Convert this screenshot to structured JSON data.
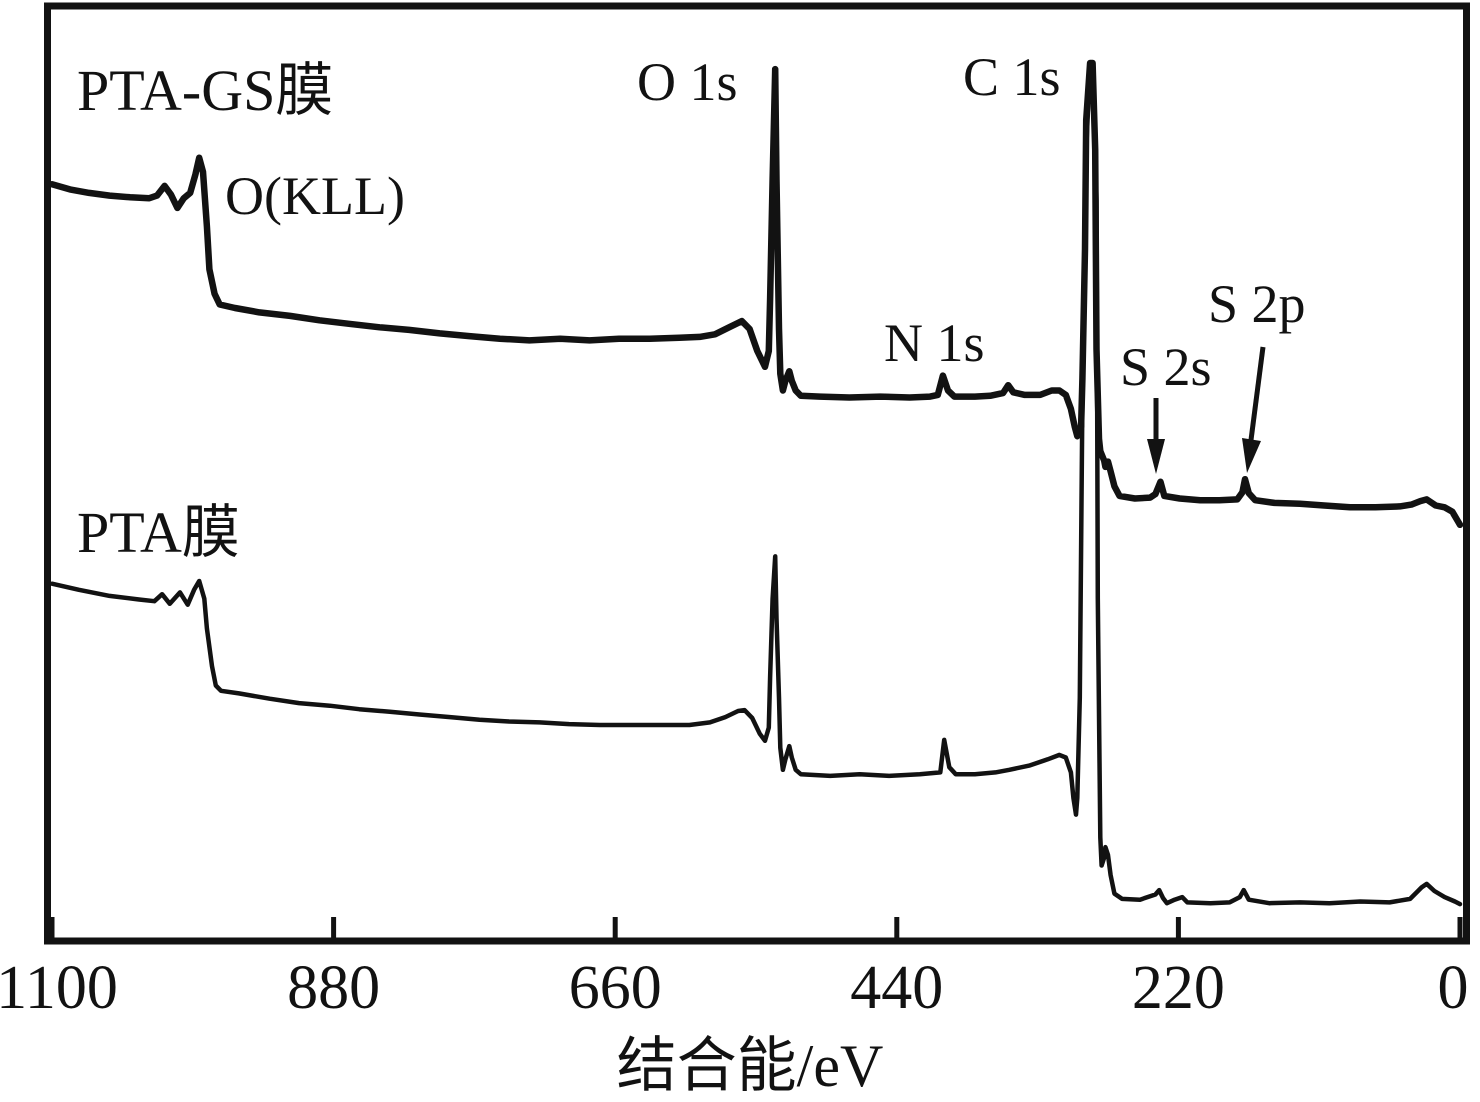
{
  "page": {
    "background": "#ffffff",
    "ink": "#121212"
  },
  "plot": {
    "curve_labels": [
      {
        "id": "pta_gs",
        "text": "PTA-GS膜"
      },
      {
        "id": "pta",
        "text": "PTA膜"
      }
    ],
    "peak_labels": {
      "o_kll": "O(KLL)",
      "o1s": "O 1s",
      "c1s": "C 1s",
      "n1s": "N 1s",
      "s2s": "S 2s",
      "s2p": "S 2p"
    },
    "x_axis_title": "结合能/eV"
  },
  "chart_data": {
    "type": "line",
    "title": "",
    "xlabel": "结合能/eV",
    "ylabel": "",
    "x_axis": {
      "min": 0,
      "max": 1100,
      "reversed": true,
      "unit": "eV",
      "ticks": [
        1100,
        880,
        660,
        440,
        220,
        0
      ]
    },
    "y_axis": {
      "scale_shown": false,
      "unit": "intensity (arbitrary units, 0-100 estimated from figure)"
    },
    "legend_position": "in-plot text labels",
    "grid": false,
    "peaks": [
      {
        "label": "O(KLL)",
        "binding_energy_eV": 985
      },
      {
        "label": "O 1s",
        "binding_energy_eV": 535
      },
      {
        "label": "N 1s",
        "binding_energy_eV": 404
      },
      {
        "label": "C 1s",
        "binding_energy_eV": 289
      },
      {
        "label": "S 2s",
        "binding_energy_eV": 234
      },
      {
        "label": "S 2p",
        "binding_energy_eV": 168
      }
    ],
    "series": [
      {
        "name": "PTA-GS膜",
        "points": [
          [
            1100,
            86.2
          ],
          [
            1086,
            85.6
          ],
          [
            1071,
            85.2
          ],
          [
            1055,
            84.9
          ],
          [
            1039,
            84.7
          ],
          [
            1024,
            84.6
          ],
          [
            1018,
            84.9
          ],
          [
            1012,
            86.0
          ],
          [
            1007,
            85.0
          ],
          [
            1002,
            83.5
          ],
          [
            997,
            84.6
          ],
          [
            992,
            85.2
          ],
          [
            988,
            87.3
          ],
          [
            985,
            89.2
          ],
          [
            982,
            87.6
          ],
          [
            979,
            81.4
          ],
          [
            977,
            76.5
          ],
          [
            973,
            73.7
          ],
          [
            969,
            72.5
          ],
          [
            957,
            72.1
          ],
          [
            938,
            71.6
          ],
          [
            914,
            71.2
          ],
          [
            891,
            70.7
          ],
          [
            868,
            70.3
          ],
          [
            844,
            69.9
          ],
          [
            821,
            69.6
          ],
          [
            797,
            69.2
          ],
          [
            774,
            68.9
          ],
          [
            750,
            68.6
          ],
          [
            727,
            68.4
          ],
          [
            703,
            68.6
          ],
          [
            680,
            68.4
          ],
          [
            657,
            68.6
          ],
          [
            633,
            68.6
          ],
          [
            610,
            68.7
          ],
          [
            594,
            68.8
          ],
          [
            582,
            69.1
          ],
          [
            571,
            69.9
          ],
          [
            561,
            70.6
          ],
          [
            555,
            69.7
          ],
          [
            549,
            67.2
          ],
          [
            543,
            65.4
          ],
          [
            540,
            67.2
          ],
          [
            539,
            73.1
          ],
          [
            537,
            86.7
          ],
          [
            535,
            99.3
          ],
          [
            534,
            86.7
          ],
          [
            532,
            69.7
          ],
          [
            531,
            64.6
          ],
          [
            529,
            62.7
          ],
          [
            527,
            63.8
          ],
          [
            524,
            64.9
          ],
          [
            522,
            63.8
          ],
          [
            519,
            62.7
          ],
          [
            515,
            62.1
          ],
          [
            500,
            62.0
          ],
          [
            477,
            61.9
          ],
          [
            453,
            62.0
          ],
          [
            430,
            61.9
          ],
          [
            414,
            62.0
          ],
          [
            408,
            62.2
          ],
          [
            404,
            64.4
          ],
          [
            400,
            62.7
          ],
          [
            395,
            62.0
          ],
          [
            379,
            62.0
          ],
          [
            367,
            62.1
          ],
          [
            357,
            62.4
          ],
          [
            353,
            63.3
          ],
          [
            349,
            62.5
          ],
          [
            340,
            62.2
          ],
          [
            328,
            62.2
          ],
          [
            319,
            62.7
          ],
          [
            313,
            62.7
          ],
          [
            308,
            62.2
          ],
          [
            304,
            60.6
          ],
          [
            301,
            58.6
          ],
          [
            299,
            57.5
          ],
          [
            296,
            58.6
          ],
          [
            295,
            64.0
          ],
          [
            293,
            78.8
          ],
          [
            292,
            93.5
          ],
          [
            289,
            100
          ],
          [
            287,
            100
          ],
          [
            285,
            90.1
          ],
          [
            284,
            67.4
          ],
          [
            282,
            57.2
          ],
          [
            281,
            55.8
          ],
          [
            278,
            54.7
          ],
          [
            277,
            54.0
          ],
          [
            275,
            54.6
          ],
          [
            273,
            53.5
          ],
          [
            270,
            51.8
          ],
          [
            266,
            50.7
          ],
          [
            254,
            50.4
          ],
          [
            242,
            50.5
          ],
          [
            238,
            50.9
          ],
          [
            234,
            52.3
          ],
          [
            231,
            50.7
          ],
          [
            219,
            50.4
          ],
          [
            203,
            50.2
          ],
          [
            188,
            50.2
          ],
          [
            174,
            50.3
          ],
          [
            170,
            51.1
          ],
          [
            168,
            52.6
          ],
          [
            165,
            51.0
          ],
          [
            160,
            50.2
          ],
          [
            145,
            49.9
          ],
          [
            125,
            49.8
          ],
          [
            106,
            49.6
          ],
          [
            86,
            49.4
          ],
          [
            66,
            49.4
          ],
          [
            47,
            49.5
          ],
          [
            38,
            49.7
          ],
          [
            31,
            50.1
          ],
          [
            26,
            50.3
          ],
          [
            19,
            49.6
          ],
          [
            12,
            49.4
          ],
          [
            6,
            48.9
          ],
          [
            2,
            47.9
          ],
          [
            0,
            47.4
          ]
        ]
      },
      {
        "name": "PTA膜",
        "points": [
          [
            1100,
            40.7
          ],
          [
            1079,
            40.0
          ],
          [
            1055,
            39.3
          ],
          [
            1032,
            38.9
          ],
          [
            1020,
            38.7
          ],
          [
            1014,
            39.5
          ],
          [
            1008,
            38.4
          ],
          [
            1000,
            39.7
          ],
          [
            994,
            38.3
          ],
          [
            989,
            40.0
          ],
          [
            985,
            41.0
          ],
          [
            981,
            39.0
          ],
          [
            979,
            35.6
          ],
          [
            975,
            31.3
          ],
          [
            972,
            29.1
          ],
          [
            968,
            28.5
          ],
          [
            954,
            28.2
          ],
          [
            930,
            27.6
          ],
          [
            907,
            27.1
          ],
          [
            883,
            26.8
          ],
          [
            860,
            26.4
          ],
          [
            836,
            26.1
          ],
          [
            813,
            25.8
          ],
          [
            789,
            25.5
          ],
          [
            766,
            25.2
          ],
          [
            743,
            25.0
          ],
          [
            719,
            24.9
          ],
          [
            696,
            24.7
          ],
          [
            672,
            24.6
          ],
          [
            649,
            24.6
          ],
          [
            625,
            24.6
          ],
          [
            602,
            24.6
          ],
          [
            586,
            24.9
          ],
          [
            574,
            25.5
          ],
          [
            564,
            26.2
          ],
          [
            559,
            26.3
          ],
          [
            553,
            25.4
          ],
          [
            547,
            23.6
          ],
          [
            543,
            22.8
          ],
          [
            540,
            24.3
          ],
          [
            539,
            30.0
          ],
          [
            537,
            39.0
          ],
          [
            535,
            43.8
          ],
          [
            534,
            36.8
          ],
          [
            532,
            27.7
          ],
          [
            531,
            22.0
          ],
          [
            529,
            19.5
          ],
          [
            527,
            20.7
          ],
          [
            524,
            22.2
          ],
          [
            522,
            20.9
          ],
          [
            519,
            19.5
          ],
          [
            515,
            19.0
          ],
          [
            492,
            18.8
          ],
          [
            469,
            19.0
          ],
          [
            446,
            18.8
          ],
          [
            422,
            19.0
          ],
          [
            406,
            19.2
          ],
          [
            403,
            22.9
          ],
          [
            399,
            19.8
          ],
          [
            394,
            19.0
          ],
          [
            379,
            19.0
          ],
          [
            363,
            19.2
          ],
          [
            352,
            19.5
          ],
          [
            336,
            20.0
          ],
          [
            322,
            20.7
          ],
          [
            313,
            21.2
          ],
          [
            308,
            20.9
          ],
          [
            304,
            19.2
          ],
          [
            302,
            16.3
          ],
          [
            300,
            14.4
          ],
          [
            299,
            16.3
          ],
          [
            297,
            27.7
          ],
          [
            295,
            61.7
          ],
          [
            292,
            90.1
          ],
          [
            289,
            100
          ],
          [
            287,
            100
          ],
          [
            284,
            84.4
          ],
          [
            283,
            39.0
          ],
          [
            281,
            11.8
          ],
          [
            280,
            8.6
          ],
          [
            278,
            9.5
          ],
          [
            277,
            10.7
          ],
          [
            275,
            9.8
          ],
          [
            273,
            7.5
          ],
          [
            270,
            5.4
          ],
          [
            264,
            4.8
          ],
          [
            250,
            4.7
          ],
          [
            238,
            5.3
          ],
          [
            235,
            5.8
          ],
          [
            232,
            4.9
          ],
          [
            229,
            4.3
          ],
          [
            223,
            4.7
          ],
          [
            217,
            5.0
          ],
          [
            213,
            4.4
          ],
          [
            195,
            4.3
          ],
          [
            180,
            4.4
          ],
          [
            172,
            5.0
          ],
          [
            169,
            5.8
          ],
          [
            165,
            4.7
          ],
          [
            149,
            4.3
          ],
          [
            125,
            4.4
          ],
          [
            102,
            4.3
          ],
          [
            78,
            4.5
          ],
          [
            55,
            4.4
          ],
          [
            39,
            4.8
          ],
          [
            30,
            6.1
          ],
          [
            26,
            6.5
          ],
          [
            20,
            5.7
          ],
          [
            12,
            5.0
          ],
          [
            4,
            4.5
          ],
          [
            0,
            4.2
          ]
        ]
      }
    ]
  }
}
